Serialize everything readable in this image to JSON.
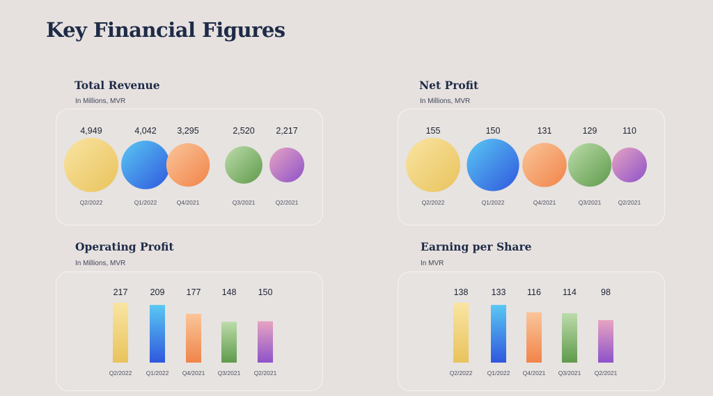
{
  "page": {
    "title": "Key Financial Figures"
  },
  "colors": {
    "background": "#e6e1df",
    "title": "#1e2b47",
    "gradients": [
      [
        "#f9e4a2",
        "#e9c35c"
      ],
      [
        "#5ac8f3",
        "#2f57de"
      ],
      [
        "#fac59a",
        "#f18449"
      ],
      [
        "#bcdcaa",
        "#5f9a4b"
      ],
      [
        "#e6a4c2",
        "#8e52c9"
      ]
    ]
  },
  "panels": [
    {
      "title": "Total Revenue",
      "subtitle": "In Millions, MVR",
      "chart_data": {
        "type": "bubble",
        "categories": [
          "Q2/2022",
          "Q1/2022",
          "Q4/2021",
          "Q3/2021",
          "Q2/2021"
        ],
        "values": [
          4949,
          4042,
          3295,
          2520,
          2217
        ],
        "value_labels": [
          "4,949",
          "4,042",
          "3,295",
          "2,520",
          "2,217"
        ]
      }
    },
    {
      "title": "Net Profit",
      "subtitle": "In Millions, MVR",
      "chart_data": {
        "type": "bubble",
        "categories": [
          "Q2/2022",
          "Q1/2022",
          "Q4/2021",
          "Q3/2021",
          "Q2/2021"
        ],
        "values": [
          155,
          150,
          131,
          129,
          110
        ],
        "value_labels": [
          "155",
          "150",
          "131",
          "129",
          "110"
        ]
      }
    },
    {
      "title": "Operating Profit",
      "subtitle": "In Millions, MVR",
      "chart_data": {
        "type": "bar",
        "categories": [
          "Q2/2022",
          "Q1/2022",
          "Q4/2021",
          "Q3/2021",
          "Q2/2021"
        ],
        "values": [
          217,
          209,
          177,
          148,
          150
        ],
        "value_labels": [
          "217",
          "209",
          "177",
          "148",
          "150"
        ]
      }
    },
    {
      "title": "Earning per Share",
      "subtitle": "In MVR",
      "chart_data": {
        "type": "bar",
        "categories": [
          "Q2/2022",
          "Q1/2022",
          "Q4/2021",
          "Q3/2021",
          "Q2/2021"
        ],
        "values": [
          138,
          133,
          116,
          114,
          98
        ],
        "value_labels": [
          "138",
          "133",
          "116",
          "114",
          "98"
        ]
      }
    }
  ]
}
